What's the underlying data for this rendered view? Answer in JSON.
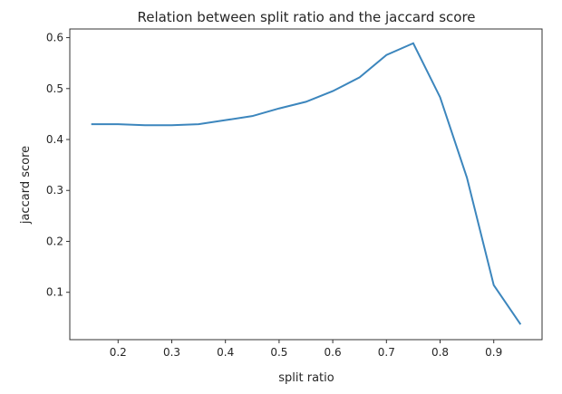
{
  "chart_data": {
    "type": "line",
    "title": "Relation between split ratio and the jaccard score",
    "xlabel": "split ratio",
    "ylabel": "jaccard score",
    "x": [
      0.15,
      0.2,
      0.25,
      0.3,
      0.35,
      0.4,
      0.45,
      0.5,
      0.55,
      0.6,
      0.65,
      0.7,
      0.75,
      0.8,
      0.85,
      0.9,
      0.95
    ],
    "series": [
      {
        "values": [
          0.43,
          0.43,
          0.428,
          0.428,
          0.43,
          0.438,
          0.446,
          0.461,
          0.474,
          0.495,
          0.522,
          0.566,
          0.589,
          0.483,
          0.325,
          0.114,
          0.037
        ],
        "color": "#3c86bd"
      }
    ],
    "xticks": [
      "0.2",
      "0.3",
      "0.4",
      "0.5",
      "0.6",
      "0.7",
      "0.8",
      "0.9"
    ],
    "yticks": [
      "0.1",
      "0.2",
      "0.3",
      "0.4",
      "0.5",
      "0.6"
    ],
    "xlim": [
      0.11,
      0.99
    ],
    "ylim": [
      0.007,
      0.617
    ],
    "grid": false
  }
}
